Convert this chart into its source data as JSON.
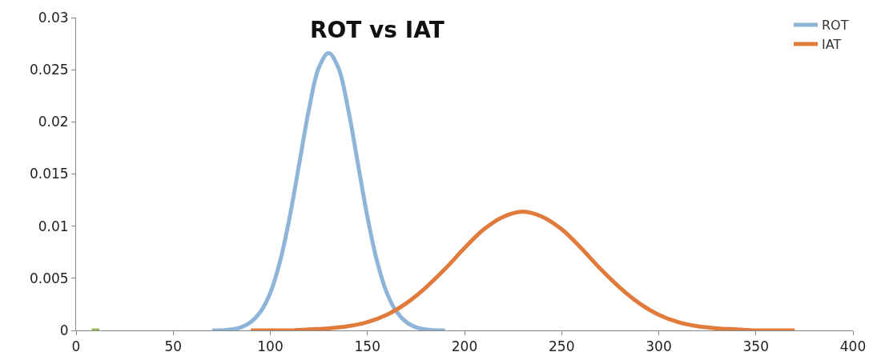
{
  "chart_data": {
    "type": "line",
    "title": "ROT vs IAT",
    "xlim": [
      0,
      400
    ],
    "xticks": [
      0,
      50,
      100,
      150,
      200,
      250,
      300,
      350,
      400
    ],
    "ylim": [
      0,
      0.03
    ],
    "yticks": [
      0,
      0.005,
      0.01,
      0.015,
      0.02,
      0.025,
      0.03
    ],
    "legend": "top right",
    "marker": "none",
    "line_style": "solid",
    "series": [
      {
        "name": "ROT",
        "color": "#8eb4d8",
        "x": [
          70,
          75,
          80,
          85,
          90,
          95,
          100,
          105,
          110,
          115,
          120,
          125,
          130,
          135,
          140,
          145,
          150,
          155,
          160,
          165,
          170,
          175,
          180,
          185,
          190
        ],
        "values": [
          0,
          0,
          0.0001,
          0.0003,
          0.0008,
          0.0018,
          0.0036,
          0.0066,
          0.0109,
          0.0161,
          0.0213,
          0.0252,
          0.0266,
          0.0252,
          0.0213,
          0.0161,
          0.0109,
          0.0066,
          0.0036,
          0.0018,
          0.0008,
          0.0003,
          0.0001,
          0,
          0
        ]
      },
      {
        "name": "IAT",
        "color": "#e07b3c",
        "x": [
          90,
          100,
          110,
          120,
          130,
          140,
          150,
          160,
          170,
          180,
          190,
          200,
          210,
          220,
          230,
          240,
          250,
          260,
          270,
          280,
          290,
          300,
          310,
          320,
          330,
          340,
          350,
          360,
          370
        ],
        "values": [
          0,
          0,
          0,
          0.0001,
          0.0002,
          0.0004,
          0.0008,
          0.0015,
          0.0026,
          0.0041,
          0.0059,
          0.0079,
          0.0097,
          0.0109,
          0.0114,
          0.0109,
          0.0097,
          0.0079,
          0.0059,
          0.0041,
          0.0026,
          0.0015,
          0.0008,
          0.0004,
          0.0002,
          0.0001,
          0,
          0,
          0
        ]
      },
      {
        "color": "#9bbb59",
        "x": [
          8,
          12
        ],
        "values": [
          0,
          0
        ]
      }
    ]
  }
}
